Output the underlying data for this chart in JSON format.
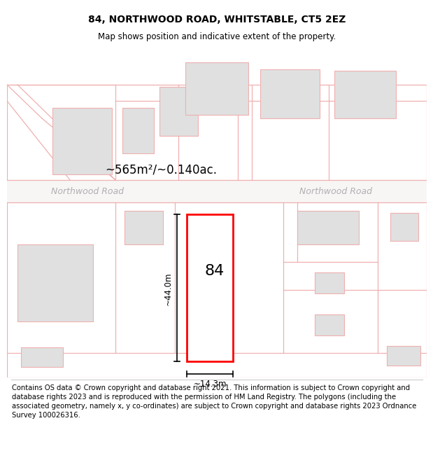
{
  "title": "84, NORTHWOOD ROAD, WHITSTABLE, CT5 2EZ",
  "subtitle": "Map shows position and indicative extent of the property.",
  "area_text": "~565m²/~0.140ac.",
  "width_text": "~14.3m",
  "height_text": "~44.0m",
  "road_label_left": "Northwood Road",
  "road_label_right": "Northwood Road",
  "number_label": "84",
  "footer_text": "Contains OS data © Crown copyright and database right 2021. This information is subject to Crown copyright and database rights 2023 and is reproduced with the permission of HM Land Registry. The polygons (including the associated geometry, namely x, y co-ordinates) are subject to Crown copyright and database rights 2023 Ordnance Survey 100026316.",
  "bg_color": "#ffffff",
  "map_bg": "#ffffff",
  "road_color": "#f0b0b0",
  "building_fill": "#e0e0e0",
  "building_edge": "#f0b0b0",
  "highlight_fill": "#ffffff",
  "highlight_edge": "#ff0000",
  "title_fontsize": 10,
  "subtitle_fontsize": 8.5,
  "footer_fontsize": 7.2
}
